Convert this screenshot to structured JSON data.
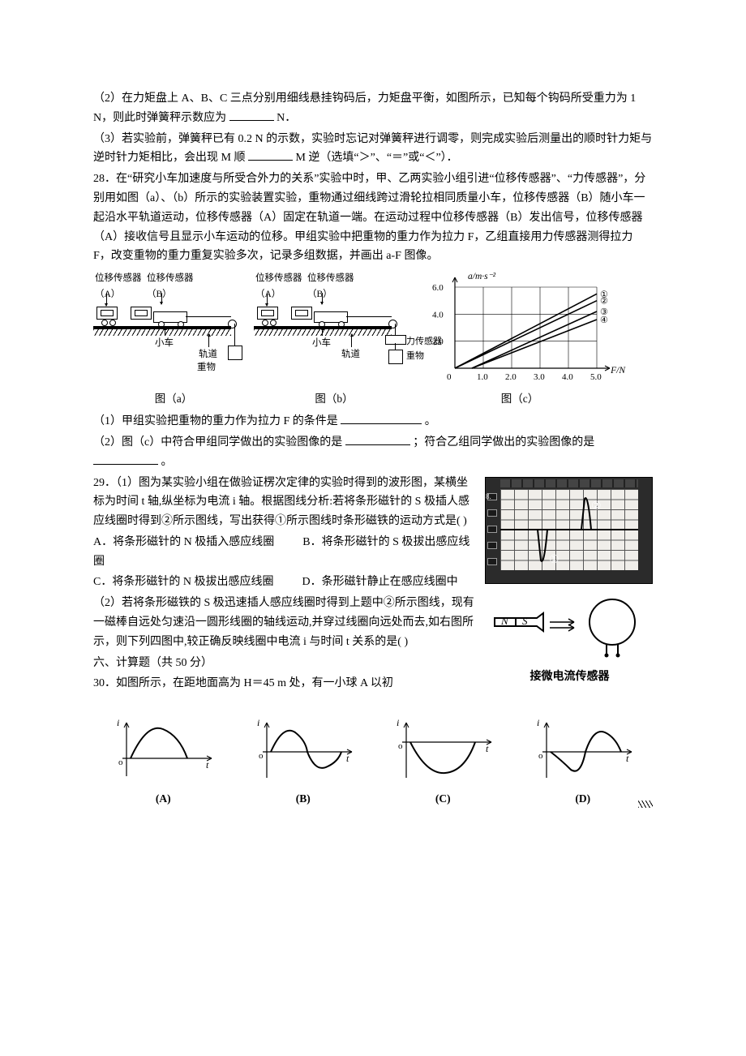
{
  "q27": {
    "p2": "（2）在力矩盘上 A、B、C 三点分别用细线悬挂钩码后，力矩盘平衡，如图所示，已知每个钩码所受重力为 1 N，则此时弹簧秤示数应为",
    "p2_unit": "N．",
    "p3a": "（3）若实验前，弹簧秤已有 0.2 N 的示数，实验时忘记对弹簧秤进行调零，则完成实验后测量出的顺时针力矩与逆时针力矩相比，会出现 M 顺",
    "p3b": "M 逆（选填“＞”、“＝”或“＜”）．"
  },
  "q28": {
    "intro": "28．在“研究小车加速度与所受合外力的关系”实验中时，甲、乙两实验小组引进“位移传感器”、“力传感器”，分别用如图（a）、（b）所示的实验装置实验，重物通过细线跨过滑轮拉相同质量小车，位移传感器（B）随小车一起沿水平轨道运动，位移传感器（A）固定在轨道一端。在运动过程中位移传感器（B）发出信号，位移传感器（A）接收信号且显示小车运动的位移。甲组实验中把重物的重力作为拉力 F，乙组直接用力传感器测得拉力 F，改变重物的重力重复实验多次，记录多组数据，并画出 a-F 图像。",
    "labels": {
      "sensorA": "位移传感器\n（A）",
      "sensorB": "位移传感器\n（B）",
      "cart": "小车",
      "track": "轨道",
      "weight": "重物",
      "force": "力传感器",
      "capA": "图（a）",
      "capB": "图（b）",
      "capC": "图（c）"
    },
    "chart": {
      "y_label": "a/m·s⁻²",
      "x_label": "F/N",
      "y_ticks": [
        "2.0",
        "4.0",
        "6.0"
      ],
      "x_ticks": [
        "1.0",
        "2.0",
        "3.0",
        "4.0",
        "5.0"
      ],
      "line_labels": [
        "①",
        "②",
        "③",
        "④"
      ],
      "grid_color": "#000000",
      "line_colors": [
        "#000000",
        "#000000",
        "#000000",
        "#000000"
      ],
      "lines": [
        {
          "x1": 0.0,
          "y1": 0.0,
          "x2": 5.0,
          "y2": 5.5
        },
        {
          "x1": 0.0,
          "y1": 0.0,
          "x2": 5.0,
          "y2": 5.0
        },
        {
          "x1": 0.6,
          "y1": 0.0,
          "x2": 5.0,
          "y2": 4.2
        },
        {
          "x1": 0.6,
          "y1": 0.0,
          "x2": 5.0,
          "y2": 3.6
        }
      ]
    },
    "q1": "（1）甲组实验把重物的重力作为拉力 F 的条件是",
    "q1_end": " 。",
    "q2a": "（2）图（c）中符合甲组同学做出的实验图像的是",
    "q2b": "；符合乙组同学做出的实验图像的是",
    "q2c": "。"
  },
  "q29": {
    "p1_intro": "29．（1）图为某实验小组在做验证楞次定律的实验时得到的波形图，某横坐标为时间 t 轴,纵坐标为电流 i 轴。根据图线分析:若将条形磁针的 S 极插人感应线圈时得到②所示图线，写出获得①所示图线时条形磁铁的运动方式是(           )",
    "optA": "A．将条形磁针的 N 极插入感应线圈",
    "optB": "B．将条形磁针的 S 极拔出感应线圈",
    "optC": "C．将条形磁针的 N 极拔出感应线圈",
    "optD": "D．条形磁针静止在感应线圈中",
    "scope": {
      "mark1": "①",
      "mark2": "②"
    },
    "p2_intro": "（2）若将条形磁铁的 S 极迅速插人感应线圈时得到上题中②所示图线，现有一磁棒自远处匀速沿一圆形线圈的轴线运动,并穿过线圈向远处而去,如右图所示，则下列四图中,较正确反映线圈中电流 i 与时间 t 关系的是(           )",
    "magnet": {
      "N": "N",
      "S": "S",
      "caption": "接微电流传感器"
    }
  },
  "section6": "六、计算题（共 50 分）",
  "q30": {
    "intro": "30．如图所示，在距地面高为 H＝45 m 处，有一小球 A 以初"
  },
  "curves": {
    "labels": [
      "(A)",
      "(B)",
      "(C)",
      "(D)"
    ],
    "axis_i": "i",
    "axis_t": "t"
  },
  "colors": {
    "text": "#000000",
    "bg": "#ffffff",
    "scope_bg": "#2b2b2b",
    "scope_screen": "#f0eeea"
  }
}
